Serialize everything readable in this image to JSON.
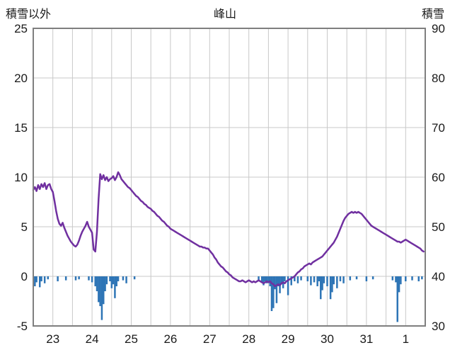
{
  "chart_data": {
    "type": "line",
    "title": "峰山",
    "left_axis": {
      "label": "積雪以外",
      "min": -5,
      "max": 25,
      "ticks": [
        25,
        20,
        15,
        10,
        5,
        0,
        -5
      ]
    },
    "right_axis": {
      "label": "積雪",
      "min": 30,
      "max": 90,
      "ticks": [
        90,
        80,
        70,
        60,
        50,
        40,
        30
      ]
    },
    "x_axis": {
      "labels": [
        "23",
        "24",
        "25",
        "26",
        "27",
        "28",
        "29",
        "30",
        "31",
        "1"
      ],
      "days": 10,
      "gridline_interval_days": 0.5
    },
    "legend": "none",
    "grid": "on",
    "colors": {
      "line": "#7030a0",
      "bar": "#2e75b6",
      "grid": "#c8c8c8",
      "frame": "#7f7f7f",
      "text": "#1a1a1a",
      "background": "#ffffff"
    },
    "series": [
      {
        "name": "snow-other-line",
        "kind": "line",
        "axis": "left",
        "samples_per_day": 24,
        "values": [
          8.7,
          9.0,
          8.6,
          9.2,
          8.8,
          9.3,
          9.0,
          9.4,
          8.8,
          9.2,
          9.3,
          8.8,
          8.5,
          7.6,
          6.6,
          5.8,
          5.3,
          5.1,
          5.4,
          4.9,
          4.5,
          4.1,
          3.8,
          3.5,
          3.3,
          3.1,
          3.0,
          3.2,
          3.6,
          4.1,
          4.5,
          4.8,
          5.1,
          5.5,
          5.0,
          4.7,
          4.4,
          2.7,
          2.5,
          4.5,
          7.8,
          10.3,
          9.8,
          10.2,
          9.7,
          10.0,
          9.6,
          9.8,
          9.9,
          10.1,
          9.7,
          10.0,
          10.5,
          10.2,
          9.8,
          9.6,
          9.4,
          9.2,
          9.0,
          8.9,
          8.7,
          8.5,
          8.3,
          8.1,
          8.0,
          7.8,
          7.6,
          7.5,
          7.3,
          7.2,
          7.0,
          6.9,
          6.8,
          6.6,
          6.5,
          6.3,
          6.1,
          6.0,
          5.8,
          5.6,
          5.5,
          5.3,
          5.1,
          5.0,
          4.8,
          4.7,
          4.6,
          4.5,
          4.4,
          4.3,
          4.2,
          4.1,
          4.0,
          3.9,
          3.8,
          3.7,
          3.6,
          3.5,
          3.4,
          3.3,
          3.2,
          3.1,
          3.0,
          3.0,
          2.9,
          2.9,
          2.8,
          2.8,
          2.6,
          2.4,
          2.2,
          1.9,
          1.7,
          1.4,
          1.2,
          1.0,
          0.9,
          0.7,
          0.5,
          0.4,
          0.2,
          0.1,
          -0.1,
          -0.2,
          -0.3,
          -0.4,
          -0.5,
          -0.5,
          -0.4,
          -0.5,
          -0.6,
          -0.5,
          -0.4,
          -0.5,
          -0.6,
          -0.5,
          -0.6,
          -0.5,
          -0.4,
          -0.5,
          -0.6,
          -0.7,
          -0.6,
          -0.5,
          -0.6,
          -0.5,
          -0.7,
          -0.8,
          -1.0,
          -0.9,
          -0.8,
          -0.9,
          -0.7,
          -0.6,
          -0.7,
          -0.5,
          -0.4,
          -0.3,
          -0.2,
          -0.1,
          0.0,
          0.2,
          0.4,
          0.5,
          0.7,
          0.8,
          1.0,
          1.1,
          1.2,
          1.3,
          1.2,
          1.4,
          1.5,
          1.6,
          1.7,
          1.8,
          1.9,
          2.0,
          2.2,
          2.4,
          2.6,
          2.8,
          3.0,
          3.2,
          3.4,
          3.7,
          4.0,
          4.4,
          4.8,
          5.2,
          5.6,
          5.9,
          6.1,
          6.3,
          6.4,
          6.5,
          6.4,
          6.5,
          6.4,
          6.5,
          6.4,
          6.3,
          6.1,
          5.9,
          5.7,
          5.5,
          5.3,
          5.1,
          5.0,
          4.9,
          4.8,
          4.7,
          4.6,
          4.5,
          4.4,
          4.3,
          4.2,
          4.1,
          4.0,
          3.9,
          3.8,
          3.7,
          3.6,
          3.5,
          3.5,
          3.4,
          3.5,
          3.6,
          3.7,
          3.6,
          3.5,
          3.4,
          3.3,
          3.2,
          3.1,
          3.0,
          2.9,
          2.8,
          2.6,
          2.5
        ]
      },
      {
        "name": "negative-bars",
        "kind": "bar",
        "axis": "left",
        "points": [
          [
            1,
            -1.0
          ],
          [
            2,
            -0.6
          ],
          [
            4,
            -1.1
          ],
          [
            5,
            -0.5
          ],
          [
            7,
            -0.7
          ],
          [
            9,
            -0.3
          ],
          [
            15,
            -0.5
          ],
          [
            20,
            -0.4
          ],
          [
            26,
            -0.4
          ],
          [
            28,
            -0.3
          ],
          [
            34,
            -0.4
          ],
          [
            36,
            -0.6
          ],
          [
            38,
            -1.0
          ],
          [
            39,
            -1.5
          ],
          [
            40,
            -2.6
          ],
          [
            41,
            -3.0
          ],
          [
            42,
            -4.4
          ],
          [
            43,
            -2.8
          ],
          [
            44,
            -1.5
          ],
          [
            45,
            -0.8
          ],
          [
            47,
            -0.5
          ],
          [
            48,
            -1.2
          ],
          [
            49,
            -0.8
          ],
          [
            50,
            -2.2
          ],
          [
            51,
            -1.0
          ],
          [
            52,
            -0.5
          ],
          [
            55,
            -0.4
          ],
          [
            57,
            -0.7
          ],
          [
            62,
            -0.3
          ],
          [
            138,
            -0.4
          ],
          [
            140,
            -0.6
          ],
          [
            141,
            -0.9
          ],
          [
            142,
            -0.5
          ],
          [
            143,
            -0.7
          ],
          [
            144,
            -0.6
          ],
          [
            145,
            -1.0
          ],
          [
            146,
            -3.5
          ],
          [
            147,
            -3.2
          ],
          [
            148,
            -1.3
          ],
          [
            149,
            -2.7
          ],
          [
            150,
            -1.0
          ],
          [
            151,
            -1.7
          ],
          [
            152,
            -0.8
          ],
          [
            153,
            -1.2
          ],
          [
            154,
            -0.5
          ],
          [
            156,
            -1.9
          ],
          [
            158,
            -0.9
          ],
          [
            160,
            -0.5
          ],
          [
            162,
            -0.7
          ],
          [
            164,
            -0.4
          ],
          [
            168,
            -0.5
          ],
          [
            170,
            -0.9
          ],
          [
            172,
            -0.6
          ],
          [
            174,
            -1.0
          ],
          [
            175,
            -0.5
          ],
          [
            176,
            -2.3
          ],
          [
            177,
            -1.4
          ],
          [
            178,
            -0.7
          ],
          [
            180,
            -1.0
          ],
          [
            182,
            -2.3
          ],
          [
            183,
            -1.6
          ],
          [
            184,
            -0.8
          ],
          [
            186,
            -1.2
          ],
          [
            188,
            -0.5
          ],
          [
            190,
            -0.7
          ],
          [
            194,
            -0.4
          ],
          [
            198,
            -0.3
          ],
          [
            204,
            -0.5
          ],
          [
            208,
            -0.3
          ],
          [
            220,
            -0.4
          ],
          [
            222,
            -0.6
          ],
          [
            223,
            -4.6
          ],
          [
            224,
            -1.6
          ],
          [
            225,
            -0.8
          ],
          [
            228,
            -0.5
          ],
          [
            232,
            -0.4
          ],
          [
            236,
            -0.5
          ],
          [
            238,
            -0.3
          ]
        ]
      }
    ]
  }
}
